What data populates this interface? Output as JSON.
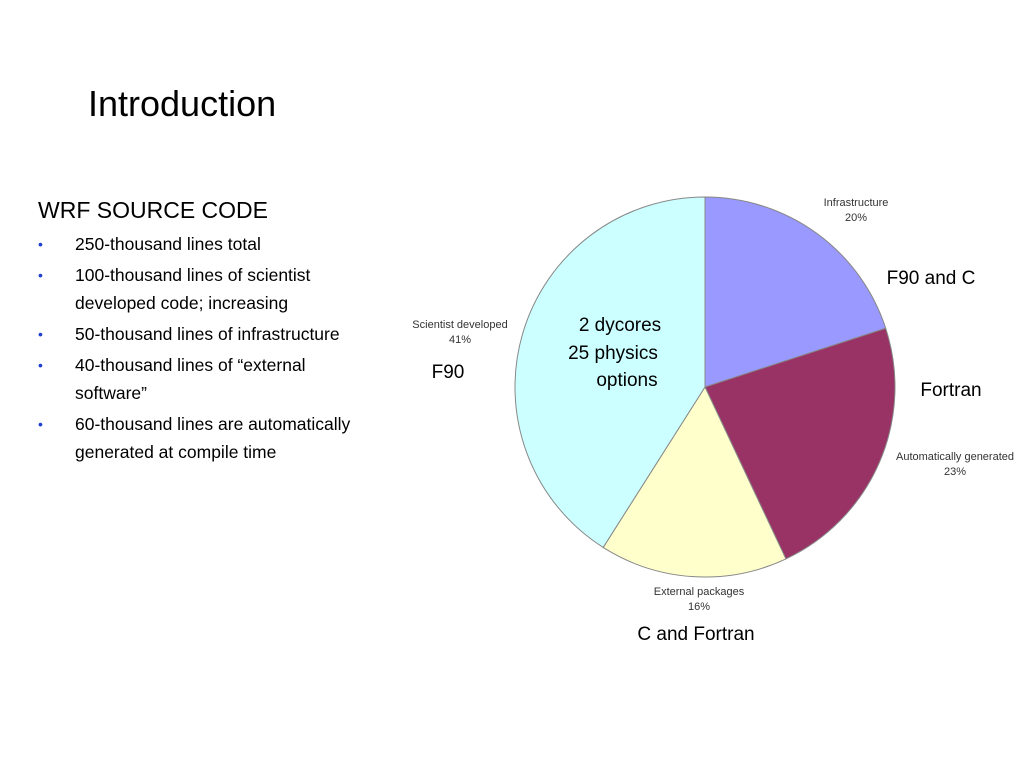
{
  "slide": {
    "title": "Introduction",
    "heading": "WRF SOURCE CODE",
    "bullets": [
      {
        "line1": "250-thousand lines total",
        "line2": ""
      },
      {
        "line1": "100-thousand lines of scientist",
        "line2": "developed code; increasing"
      },
      {
        "line1": "50-thousand lines of infrastructure",
        "line2": ""
      },
      {
        "line1": "40-thousand lines of “external",
        "line2": "software”"
      },
      {
        "line1": "60-thousand lines are automatically",
        "line2": "generated at compile time"
      }
    ],
    "bullet_symbol": "•",
    "bullet_color": "#1f3fcf"
  },
  "annotations": {
    "f90_and_c": "F90 and C",
    "fortran": "Fortran",
    "c_and_fortran": "C and Fortran",
    "f90": "F90",
    "center_line1": "2 dycores",
    "center_line2": "25 physics",
    "center_line3": "options"
  },
  "chart_data": {
    "type": "pie",
    "title": "",
    "slices": [
      {
        "name": "Infrastructure",
        "label": "20%",
        "value": 20,
        "color": "#9999ff"
      },
      {
        "name": "Automatically generated",
        "label": "23%",
        "value": 23,
        "color": "#993366"
      },
      {
        "name": "External packages",
        "label": "16%",
        "value": 16,
        "color": "#ffffcc"
      },
      {
        "name": "Scientist developed",
        "label": "41%",
        "value": 41,
        "color": "#ccffff"
      }
    ],
    "start": "12 o'clock",
    "direction": "clockwise",
    "edge_color": "#888888"
  }
}
